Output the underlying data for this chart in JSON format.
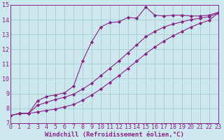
{
  "bg_color": "#cce8ee",
  "grid_color": "#b0d0d8",
  "line_color": "#882288",
  "marker_color": "#882288",
  "xlabel": "Windchill (Refroidissement éolien,°C)",
  "xlabel_fontsize": 6.5,
  "tick_fontsize": 6.0,
  "xmin": 0,
  "xmax": 23,
  "ymin": 7,
  "ymax": 15,
  "x_ticks": [
    0,
    1,
    2,
    3,
    4,
    5,
    6,
    7,
    8,
    9,
    10,
    11,
    12,
    13,
    14,
    15,
    16,
    17,
    18,
    19,
    20,
    21,
    22,
    23
  ],
  "y_ticks": [
    7,
    8,
    9,
    10,
    11,
    12,
    13,
    14,
    15
  ],
  "line1_x": [
    0,
    1,
    2,
    3,
    4,
    5,
    6,
    7,
    8,
    9,
    10,
    11,
    12,
    13,
    14,
    15,
    16,
    17,
    18,
    19,
    20,
    21,
    22,
    23
  ],
  "line1_y": [
    7.5,
    7.65,
    7.65,
    8.5,
    8.8,
    8.9,
    9.05,
    9.5,
    11.2,
    12.5,
    13.5,
    13.8,
    13.85,
    14.15,
    14.1,
    14.85,
    14.3,
    14.25,
    14.3,
    14.3,
    14.25,
    14.25,
    14.3,
    14.5
  ],
  "line2_x": [
    0,
    1,
    2,
    3,
    4,
    5,
    6,
    7,
    8,
    9,
    10,
    11,
    12,
    13,
    14,
    15,
    16,
    17,
    18,
    19,
    20,
    21,
    22,
    23
  ],
  "line2_y": [
    7.5,
    7.65,
    7.65,
    8.2,
    8.4,
    8.6,
    8.75,
    8.95,
    9.3,
    9.7,
    10.2,
    10.7,
    11.2,
    11.75,
    12.3,
    12.85,
    13.2,
    13.5,
    13.7,
    13.85,
    14.0,
    14.1,
    14.2,
    14.45
  ],
  "line3_x": [
    0,
    1,
    2,
    3,
    4,
    5,
    6,
    7,
    8,
    9,
    10,
    11,
    12,
    13,
    14,
    15,
    16,
    17,
    18,
    19,
    20,
    21,
    22,
    23
  ],
  "line3_y": [
    7.5,
    7.65,
    7.65,
    7.75,
    7.85,
    7.95,
    8.1,
    8.25,
    8.55,
    8.9,
    9.3,
    9.75,
    10.2,
    10.7,
    11.2,
    11.7,
    12.15,
    12.55,
    12.9,
    13.2,
    13.5,
    13.75,
    13.95,
    14.45
  ]
}
